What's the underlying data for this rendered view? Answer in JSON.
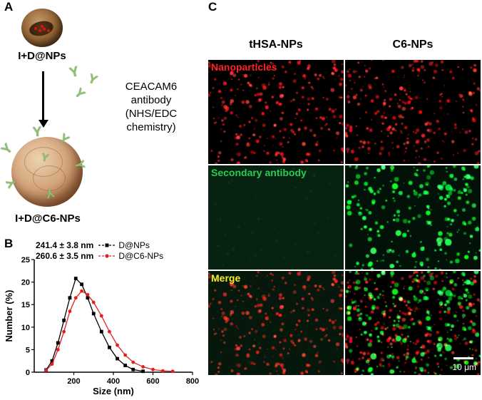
{
  "figure": {
    "panel_a": {
      "label": "A",
      "top_particle_label": "I+D@NPs",
      "reaction_lines": [
        "CEACAM6",
        "antibody",
        "(NHS/EDC",
        "chemistry)"
      ],
      "bottom_particle_label": "I+D@C6-NPs"
    },
    "panel_b": {
      "label": "B"
    },
    "panel_c": {
      "label": "C",
      "column_headers": [
        "tHSA-NPs",
        "C6-NPs"
      ],
      "row_labels": [
        {
          "text": "Nanoparticles",
          "color": "#ff2222"
        },
        {
          "text": "Secondary antibody",
          "color": "#28cc50"
        },
        {
          "text": "Merge",
          "color": "#f0f022"
        }
      ],
      "cells": [
        {
          "col": 0,
          "row": 0,
          "signal": "red"
        },
        {
          "col": 1,
          "row": 0,
          "signal": "red"
        },
        {
          "col": 0,
          "row": 1,
          "signal": "none-green-bg"
        },
        {
          "col": 1,
          "row": 1,
          "signal": "green"
        },
        {
          "col": 0,
          "row": 2,
          "signal": "red-merge-dark"
        },
        {
          "col": 1,
          "row": 2,
          "signal": "red-green-merge"
        }
      ],
      "scale_bar": "10 μm"
    }
  },
  "chart_data": {
    "type": "line",
    "title": "",
    "xlabel": "Size (nm)",
    "ylabel": "Number (%)",
    "xlim": [
      0,
      800
    ],
    "ylim": [
      0,
      25
    ],
    "xticks": [
      200,
      400,
      600,
      800
    ],
    "yticks": [
      0,
      5,
      10,
      15,
      20,
      25
    ],
    "legend_position": "top-left-inside",
    "grid": false,
    "series": [
      {
        "name": "D@NPs",
        "mean_label": "241.4 ± 3.8 nm",
        "color": "#000000",
        "marker": "square",
        "x": [
          60,
          90,
          120,
          150,
          180,
          210,
          240,
          270,
          300,
          340,
          380,
          420,
          460,
          500,
          550
        ],
        "y": [
          0.5,
          2.5,
          6.5,
          11.5,
          16.5,
          20.8,
          19.5,
          16.5,
          13.0,
          9.0,
          5.5,
          3.0,
          1.5,
          0.6,
          0.2
        ]
      },
      {
        "name": "D@C6-NPs",
        "mean_label": "260.6 ± 3.5 nm",
        "color": "#e02020",
        "marker": "circle",
        "x": [
          60,
          90,
          120,
          150,
          180,
          210,
          240,
          270,
          300,
          340,
          380,
          420,
          460,
          500,
          550,
          600,
          650,
          700
        ],
        "y": [
          0.4,
          1.8,
          5.0,
          9.0,
          13.5,
          16.5,
          18.0,
          17.2,
          15.5,
          12.5,
          9.0,
          6.0,
          3.8,
          2.2,
          1.2,
          0.6,
          0.3,
          0.2
        ]
      }
    ]
  }
}
